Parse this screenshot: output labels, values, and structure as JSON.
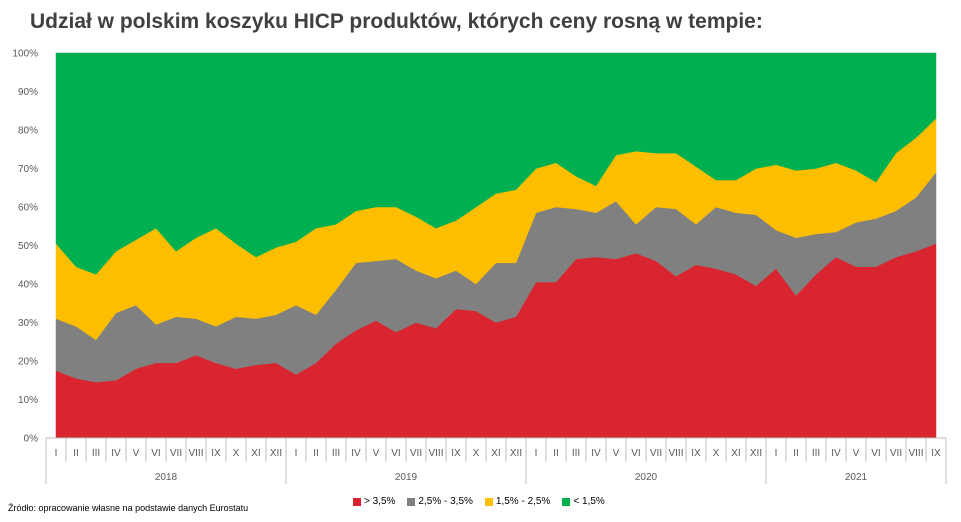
{
  "chart_data": {
    "type": "area",
    "stacked": true,
    "title": "Udział w polskim koszyku HICP produktów, których ceny rosną w tempie:",
    "source": "Źródło: opracowanie własne na podstawie danych Eurostatu",
    "x": [
      "I",
      "II",
      "III",
      "IV",
      "V",
      "VI",
      "VII",
      "VIII",
      "IX",
      "X",
      "XI",
      "XII",
      "I",
      "II",
      "III",
      "IV",
      "V",
      "VI",
      "VII",
      "VIII",
      "IX",
      "X",
      "XI",
      "XII",
      "I",
      "II",
      "III",
      "IV",
      "V",
      "VI",
      "VII",
      "VIII",
      "IX",
      "X",
      "XI",
      "XII",
      "I",
      "II",
      "III",
      "IV",
      "V",
      "VI",
      "VII",
      "VIII",
      "IX"
    ],
    "years": [
      {
        "label": "2018",
        "start": 0,
        "count": 12
      },
      {
        "label": "2019",
        "start": 12,
        "count": 12
      },
      {
        "label": "2020",
        "start": 24,
        "count": 12
      },
      {
        "label": "2021",
        "start": 36,
        "count": 9
      }
    ],
    "ylim": [
      0,
      100
    ],
    "yticks": [
      "0%",
      "10%",
      "20%",
      "30%",
      "40%",
      "50%",
      "60%",
      "70%",
      "80%",
      "90%",
      "100%"
    ],
    "legend_position": "bottom",
    "series": [
      {
        "name": "> 3,5%",
        "color": "#d9252f",
        "values": [
          17.5,
          15.5,
          14.5,
          15,
          18,
          19.5,
          19.5,
          21.5,
          19.5,
          18,
          19,
          19.5,
          16.5,
          19.5,
          24.5,
          28,
          30.5,
          27.5,
          30,
          28.5,
          33.5,
          33,
          30,
          31.5,
          40.5,
          40.5,
          46.5,
          47,
          46.5,
          48,
          46,
          42,
          45,
          44,
          42.5,
          39.5,
          44,
          37,
          42.5,
          47,
          44.5,
          44.5,
          47,
          48.5,
          50.5
        ]
      },
      {
        "name": "2,5% - 3,5%",
        "color": "#808080",
        "values": [
          13.5,
          13.5,
          11,
          17.5,
          16.5,
          10,
          12,
          9.5,
          9.5,
          13.5,
          12,
          12.5,
          18,
          12.5,
          14,
          17.5,
          15.5,
          19,
          13.5,
          13,
          10,
          7,
          15.5,
          14,
          18,
          19.5,
          13,
          11.5,
          15,
          7.5,
          14,
          17.5,
          10.5,
          16,
          16,
          18.5,
          10,
          15,
          10.5,
          6.5,
          11.5,
          12.5,
          12,
          14,
          18.5
        ]
      },
      {
        "name": "1,5% - 2,5%",
        "color": "#fdbe00",
        "values": [
          19.5,
          15.5,
          17,
          16,
          17,
          25,
          17,
          21,
          25.5,
          19,
          16,
          17.5,
          16.5,
          22.5,
          17,
          13.5,
          14,
          13.5,
          14,
          13,
          13,
          20,
          18,
          19,
          11.5,
          11.5,
          8.5,
          7,
          12,
          19,
          14,
          14.5,
          15,
          7,
          8.5,
          12,
          17,
          17.5,
          17,
          18,
          13.5,
          9.5,
          15,
          15.5,
          14
        ]
      },
      {
        "name": "< 1,5%",
        "color": "#00b050",
        "values": [
          49.5,
          55.5,
          57.5,
          51.5,
          48.5,
          45.5,
          51.5,
          48,
          45.5,
          49.5,
          53,
          50.5,
          49,
          45.5,
          44.5,
          41,
          40,
          40,
          42.5,
          45.5,
          43.5,
          40,
          36.5,
          35.5,
          30,
          28.5,
          32,
          34.5,
          26.5,
          25.5,
          26,
          26,
          29.5,
          33,
          33,
          30,
          29,
          30.5,
          30,
          28.5,
          30.5,
          33.5,
          26,
          22,
          17
        ]
      }
    ]
  }
}
